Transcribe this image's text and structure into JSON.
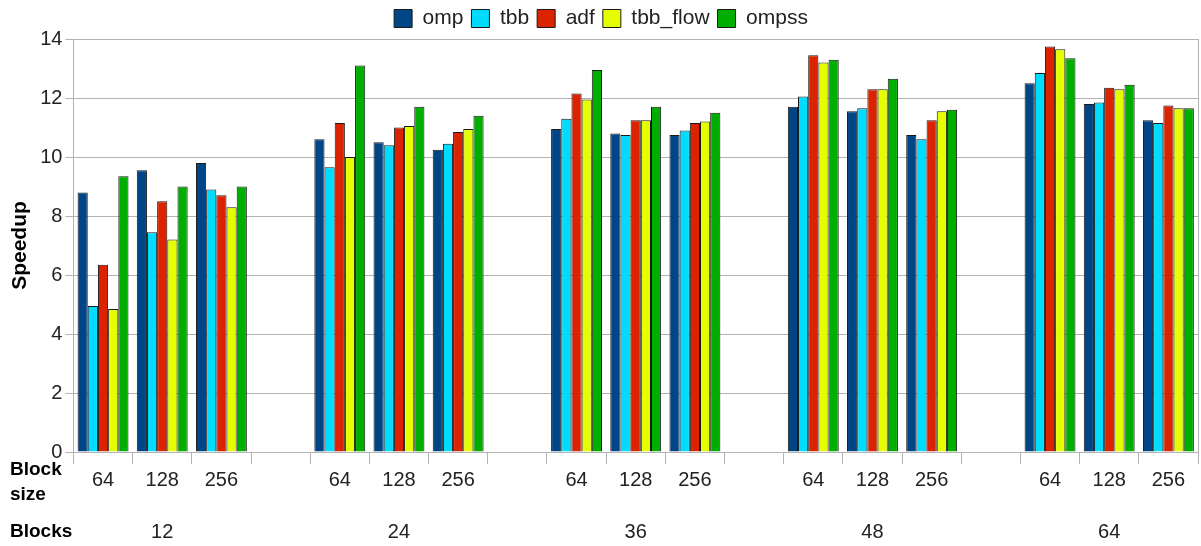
{
  "chart_data": {
    "type": "bar",
    "ylabel": "Speedup",
    "categories": [
      "64",
      "128",
      "256",
      null,
      "64",
      "128",
      "256",
      null,
      "64",
      "128",
      "256",
      null,
      "64",
      "128",
      "256",
      null,
      "64",
      "128",
      "256"
    ],
    "series": [
      {
        "name": "omp",
        "color": "#004586",
        "values": [
          8.8,
          9.55,
          9.8,
          null,
          10.6,
          10.5,
          10.25,
          null,
          10.95,
          10.8,
          10.75,
          null,
          11.7,
          11.55,
          10.75,
          null,
          12.5,
          11.8,
          11.25
        ]
      },
      {
        "name": "tbb",
        "color": "#00dcff",
        "values": [
          4.95,
          7.45,
          8.9,
          null,
          9.65,
          10.4,
          10.45,
          null,
          11.3,
          10.75,
          10.9,
          null,
          12.05,
          11.65,
          10.6,
          null,
          12.85,
          11.85,
          11.15
        ]
      },
      {
        "name": "adf",
        "color": "#dc2300",
        "values": [
          6.35,
          8.5,
          8.7,
          null,
          11.15,
          11.0,
          10.85,
          null,
          12.15,
          11.25,
          11.15,
          null,
          13.45,
          12.3,
          11.25,
          null,
          13.75,
          12.35,
          11.75
        ]
      },
      {
        "name": "tbb_flow",
        "color": "#e6ff00",
        "values": [
          4.85,
          7.2,
          8.3,
          null,
          10.0,
          11.05,
          10.95,
          null,
          11.95,
          11.25,
          11.2,
          null,
          13.2,
          12.3,
          11.55,
          null,
          13.65,
          12.3,
          11.65
        ]
      },
      {
        "name": "ompss",
        "color": "#00ae00",
        "values": [
          9.35,
          9.0,
          9.0,
          null,
          13.1,
          11.7,
          11.4,
          null,
          12.95,
          11.7,
          11.5,
          null,
          13.3,
          12.65,
          11.6,
          null,
          13.35,
          12.45,
          11.65
        ]
      }
    ],
    "ylim": [
      0,
      14
    ],
    "yticks": [
      0,
      2,
      4,
      6,
      8,
      10,
      12,
      14
    ],
    "grid": "y",
    "legend": "top",
    "annotations": [
      "Block size",
      "Blocks",
      "12",
      "24",
      "36",
      "48",
      "64"
    ]
  }
}
